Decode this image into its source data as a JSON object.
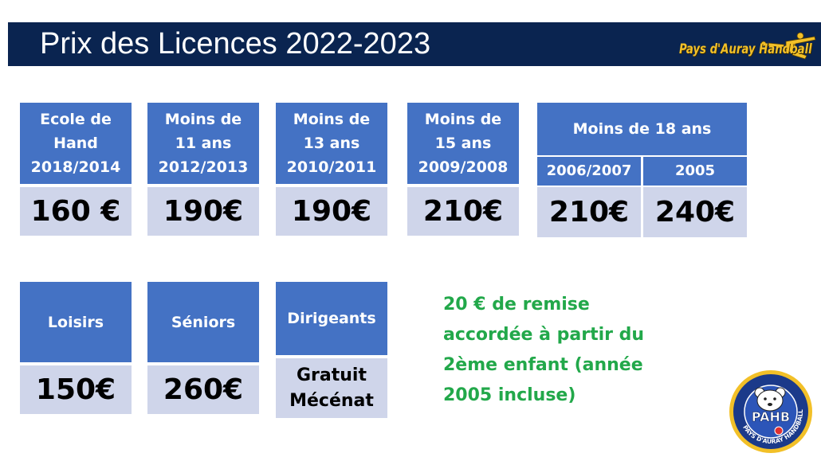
{
  "header": {
    "title": "Prix des Licences 2022-2023",
    "club_name": "Pays d'Auray Handball"
  },
  "colors": {
    "header_bg": "#0a2450",
    "card_head": "#4472c4",
    "card_price": "#cfd5ea",
    "discount_text": "#22a84a",
    "logo_gold": "#f2c028"
  },
  "row1": [
    {
      "head": [
        "Ecole de",
        "Hand",
        "2018/2014"
      ],
      "price": "160 €"
    },
    {
      "head": [
        "Moins de",
        "11 ans",
        "2012/2013"
      ],
      "price": "190€"
    },
    {
      "head": [
        "Moins de",
        "13 ans",
        "2010/2011"
      ],
      "price": "190€"
    },
    {
      "head": [
        "Moins de",
        "15 ans",
        "2009/2008"
      ],
      "price": "210€"
    }
  ],
  "u18": {
    "title": "Moins de 18 ans",
    "sub": [
      {
        "label": "2006/2007",
        "price": "210€"
      },
      {
        "label": "2005",
        "price": "240€"
      }
    ]
  },
  "row2": [
    {
      "head": "Loisirs",
      "price": "150€"
    },
    {
      "head": "Séniors",
      "price": "260€"
    },
    {
      "head": "Dirigeants",
      "price_lines": [
        "Gratuit",
        "Mécénat"
      ]
    }
  ],
  "discount": {
    "lines": [
      "20 € de remise",
      "accordée à partir du",
      "2ème enfant (année",
      "2005 incluse)"
    ]
  },
  "badge": {
    "initials": "PAHB",
    "ring_text": "PAYS D'AURAY HANDBALL"
  }
}
